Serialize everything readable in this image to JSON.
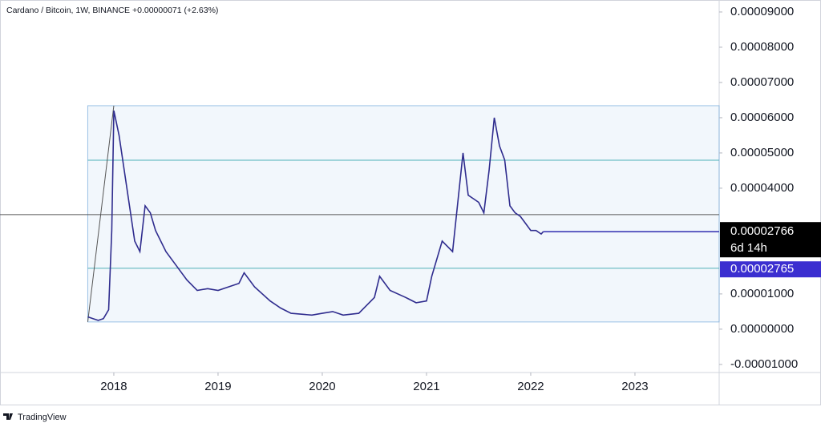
{
  "chart_data": {
    "type": "line",
    "title": "Cardano / Bitcoin, 1W, BINANCE  +0.00000071 (+2.63%)",
    "series": [
      {
        "name": "ADA/BTC",
        "color": "#2f2c8e",
        "x": [
          2017.75,
          2017.8,
          2017.85,
          2017.9,
          2017.95,
          2017.98,
          2018.0,
          2018.05,
          2018.1,
          2018.15,
          2018.2,
          2018.25,
          2018.3,
          2018.35,
          2018.4,
          2018.5,
          2018.6,
          2018.7,
          2018.8,
          2018.9,
          2019.0,
          2019.1,
          2019.2,
          2019.25,
          2019.35,
          2019.5,
          2019.6,
          2019.7,
          2019.9,
          2020.0,
          2020.1,
          2020.2,
          2020.35,
          2020.5,
          2020.55,
          2020.65,
          2020.8,
          2020.9,
          2021.0,
          2021.05,
          2021.15,
          2021.25,
          2021.35,
          2021.4,
          2021.5,
          2021.55,
          2021.6,
          2021.65,
          2021.7,
          2021.75,
          2021.8,
          2021.85,
          2021.9,
          2021.95,
          2022.0,
          2022.05,
          2022.1,
          2022.12
        ],
        "values": [
          3.5e-06,
          3e-06,
          2.5e-06,
          3e-06,
          5.5e-06,
          2.8e-05,
          6.2e-05,
          5.5e-05,
          4.5e-05,
          3.5e-05,
          2.5e-05,
          2.2e-05,
          3.5e-05,
          3.3e-05,
          2.8e-05,
          2.2e-05,
          1.8e-05,
          1.4e-05,
          1.1e-05,
          1.15e-05,
          1.1e-05,
          1.2e-05,
          1.3e-05,
          1.6e-05,
          1.2e-05,
          8e-06,
          6e-06,
          4.5e-06,
          4e-06,
          4.5e-06,
          5e-06,
          4e-06,
          4.5e-06,
          9e-06,
          1.5e-05,
          1.1e-05,
          9e-06,
          7.5e-06,
          8e-06,
          1.5e-05,
          2.5e-05,
          2.2e-05,
          5e-05,
          3.8e-05,
          3.6e-05,
          3.3e-05,
          4.5e-05,
          6e-05,
          5.2e-05,
          4.8e-05,
          3.5e-05,
          3.3e-05,
          3.2e-05,
          3e-05,
          2.8e-05,
          2.8e-05,
          2.7e-05,
          2.766e-05
        ]
      }
    ],
    "xlim": [
      2016.908,
      2023.808
    ],
    "xticks": [
      2018,
      2019,
      2020,
      2021,
      2022,
      2023
    ],
    "ylim": [
      -1.23e-05,
      9.34e-05
    ],
    "yticks": [
      {
        "value": -1e-05,
        "label": "-0.00001000"
      },
      {
        "value": 0,
        "label": "0.00000000"
      },
      {
        "value": 1e-05,
        "label": "0.00001000"
      },
      {
        "value": 4e-05,
        "label": "0.00004000"
      },
      {
        "value": 5e-05,
        "label": "0.00005000"
      },
      {
        "value": 6e-05,
        "label": "0.00006000"
      },
      {
        "value": 7e-05,
        "label": "0.00007000"
      },
      {
        "value": 8e-05,
        "label": "0.00008000"
      },
      {
        "value": 9e-05,
        "label": "0.00009000"
      }
    ],
    "channel": {
      "x": [
        2017.75,
        2023.808
      ],
      "top": 6.341e-05,
      "bottom": 2.05e-06,
      "levels": [
        4.795e-05,
        1.727e-05
      ],
      "color": "#5b9bd5"
    },
    "hline": 3.25e-05,
    "last_price": 2.766e-05,
    "countdown": "6d 14h",
    "prev_price": 2.765e-05,
    "brand": "TradingView"
  }
}
